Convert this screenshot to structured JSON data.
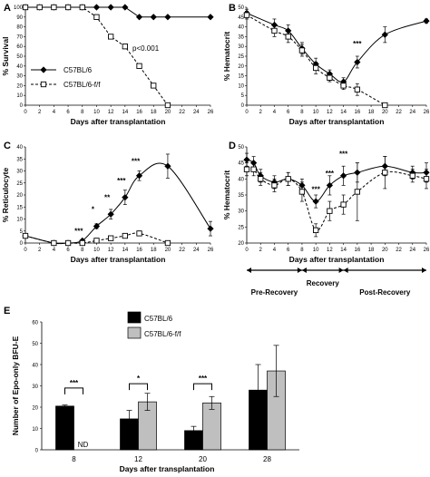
{
  "figure": {
    "panels": {
      "A": "A",
      "B": "B",
      "C": "C",
      "D": "D",
      "E": "E"
    }
  },
  "chart_data": [
    {
      "panel": "A",
      "type": "line",
      "xlabel": "Days after transplantation",
      "ylabel": "% Survival",
      "xlim": [
        0,
        26
      ],
      "ylim": [
        0,
        100
      ],
      "xticks": [
        0,
        2,
        4,
        6,
        8,
        10,
        12,
        14,
        16,
        18,
        20,
        22,
        24,
        26
      ],
      "yticks": [
        0,
        10,
        20,
        30,
        40,
        50,
        60,
        70,
        80,
        90,
        100
      ],
      "legend": [
        "C57BL/6",
        "C57BL/6-f/f"
      ],
      "annotation": "p<0.001",
      "series": [
        {
          "name": "C57BL/6",
          "marker": "diamond",
          "line": "solid",
          "x": [
            0,
            2,
            4,
            6,
            8,
            10,
            12,
            14,
            16,
            18,
            20,
            26
          ],
          "y": [
            100,
            100,
            100,
            100,
            100,
            100,
            100,
            100,
            90,
            90,
            90,
            90
          ]
        },
        {
          "name": "C57BL/6-f/f",
          "marker": "square",
          "line": "dashed",
          "x": [
            0,
            2,
            4,
            6,
            8,
            10,
            12,
            14,
            16,
            18,
            20
          ],
          "y": [
            100,
            100,
            100,
            100,
            100,
            90,
            70,
            60,
            40,
            20,
            0
          ]
        }
      ]
    },
    {
      "panel": "B",
      "type": "line",
      "xlabel": "Days after transplantation",
      "ylabel": "% Hematocrit",
      "xlim": [
        0,
        26
      ],
      "ylim": [
        0,
        50
      ],
      "xticks": [
        0,
        2,
        4,
        6,
        8,
        10,
        12,
        14,
        16,
        18,
        20,
        22,
        24,
        26
      ],
      "yticks": [
        0,
        5,
        10,
        15,
        20,
        25,
        30,
        35,
        40,
        45,
        50
      ],
      "annotations": [
        {
          "text": "***",
          "x": 16
        }
      ],
      "series": [
        {
          "name": "C57BL/6",
          "marker": "diamond",
          "line": "solid",
          "x": [
            0,
            4,
            6,
            8,
            10,
            12,
            14,
            16,
            20,
            26
          ],
          "y": [
            47,
            41,
            38,
            29,
            21,
            16,
            12,
            22,
            36,
            43
          ],
          "err": [
            2,
            3,
            3,
            3,
            3,
            2,
            2,
            3,
            4,
            1
          ]
        },
        {
          "name": "C57BL/6-f/f",
          "marker": "square",
          "line": "dashed",
          "x": [
            0,
            4,
            6,
            8,
            10,
            12,
            14,
            16,
            20
          ],
          "y": [
            46,
            38,
            35,
            28,
            19,
            14,
            10,
            8,
            0
          ],
          "err": [
            2,
            3,
            3,
            3,
            3,
            2,
            2,
            3,
            0
          ]
        }
      ]
    },
    {
      "panel": "C",
      "type": "line",
      "xlabel": "Days after transplantation",
      "ylabel": "% Reticulocyte",
      "xlim": [
        0,
        26
      ],
      "ylim": [
        0,
        40
      ],
      "xticks": [
        0,
        2,
        4,
        6,
        8,
        10,
        12,
        14,
        16,
        18,
        20,
        22,
        24,
        26
      ],
      "yticks": [
        0,
        5,
        10,
        15,
        20,
        25,
        30,
        35,
        40
      ],
      "annotations": [
        {
          "text": "***",
          "x": 8
        },
        {
          "text": "*",
          "x": 10
        },
        {
          "text": "**",
          "x": 12
        },
        {
          "text": "***",
          "x": 14
        },
        {
          "text": "***",
          "x": 16
        }
      ],
      "series": [
        {
          "name": "C57BL/6",
          "marker": "diamond",
          "line": "solid",
          "x": [
            0,
            4,
            6,
            8,
            10,
            12,
            14,
            16,
            20,
            26
          ],
          "y": [
            3,
            0,
            0,
            1,
            7,
            12,
            19,
            28,
            32,
            6
          ],
          "err": [
            0,
            0,
            0,
            0,
            1,
            2,
            3,
            2,
            5,
            3
          ]
        },
        {
          "name": "C57BL/6-f/f",
          "marker": "square",
          "line": "dashed",
          "x": [
            0,
            4,
            6,
            8,
            10,
            12,
            14,
            16,
            20
          ],
          "y": [
            3,
            0,
            0,
            0,
            1,
            2,
            3,
            4,
            0
          ],
          "err": [
            0,
            0,
            0,
            0,
            0,
            0,
            0,
            1,
            0
          ]
        }
      ]
    },
    {
      "panel": "D",
      "type": "line",
      "xlabel": "Days after transplantation",
      "ylabel": "% Hematocrit",
      "xlim": [
        0,
        26
      ],
      "ylim": [
        20,
        50
      ],
      "xticks": [
        0,
        2,
        4,
        6,
        8,
        10,
        12,
        14,
        16,
        18,
        20,
        22,
        24,
        26
      ],
      "yticks": [
        20,
        25,
        30,
        35,
        40,
        45,
        50
      ],
      "annotations": [
        {
          "text": "***",
          "x": 10
        },
        {
          "text": "***",
          "x": 12
        },
        {
          "text": "***",
          "x": 14
        }
      ],
      "phases": [
        "Pre-Recovery",
        "Recovery",
        "Post-Recovery"
      ],
      "phase_bounds": [
        0,
        8,
        14,
        26
      ],
      "series": [
        {
          "name": "C57BL/6",
          "marker": "diamond",
          "line": "solid",
          "x": [
            0,
            1,
            2,
            4,
            6,
            8,
            10,
            12,
            14,
            16,
            20,
            24,
            26
          ],
          "y": [
            46,
            45,
            41,
            39,
            40,
            38,
            33,
            38,
            41,
            42,
            44,
            42,
            42
          ],
          "err": [
            2,
            2,
            2,
            2,
            2,
            2,
            2,
            3,
            3,
            3,
            3,
            2,
            3
          ]
        },
        {
          "name": "C57BL/6-f/f",
          "marker": "square",
          "line": "dashed",
          "x": [
            0,
            1,
            2,
            4,
            6,
            8,
            10,
            12,
            14,
            16,
            20,
            24,
            26
          ],
          "y": [
            43,
            43,
            40,
            38,
            40,
            36,
            24,
            30,
            32,
            36,
            42,
            41,
            40
          ],
          "err": [
            2,
            2,
            2,
            2,
            2,
            3,
            2,
            3,
            3,
            9,
            5,
            2,
            3
          ]
        }
      ]
    },
    {
      "panel": "E",
      "type": "bar",
      "xlabel": "Days after transplantation",
      "ylabel": "Number of Epo-only BFU-E",
      "categories": [
        "8",
        "12",
        "20",
        "28"
      ],
      "ylim": [
        0,
        60
      ],
      "yticks": [
        0,
        10,
        20,
        30,
        40,
        50,
        60
      ],
      "series": [
        {
          "name": "C57BL/6",
          "color": "#000000",
          "values": [
            20.5,
            14.5,
            9,
            28
          ],
          "err": [
            0.5,
            4,
            2,
            12
          ]
        },
        {
          "name": "C57BL/6-f/f",
          "color": "#bfbfbf",
          "values": [
            0,
            22.5,
            22,
            37
          ],
          "err": [
            0,
            4,
            3,
            12
          ]
        }
      ],
      "labels": [
        {
          "text": "ND",
          "category": "8"
        }
      ],
      "significance": [
        {
          "category": "8",
          "text": "***"
        },
        {
          "category": "12",
          "text": "*"
        },
        {
          "category": "20",
          "text": "***"
        }
      ]
    }
  ]
}
